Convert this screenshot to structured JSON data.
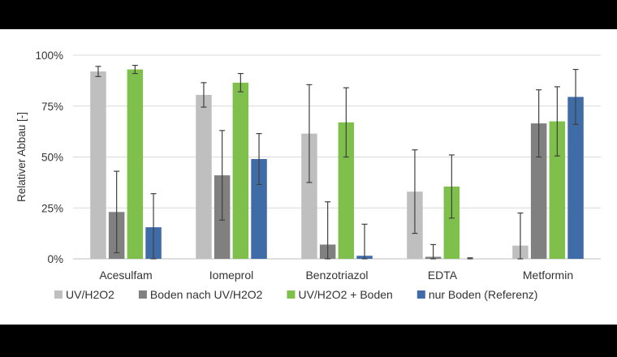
{
  "chart_data": {
    "type": "bar",
    "title": "",
    "xlabel": "",
    "ylabel": "Relativer Abbau  [-]",
    "ylim": [
      0,
      100
    ],
    "yticks": [
      0,
      25,
      50,
      75,
      100
    ],
    "ytick_labels": [
      "0%",
      "25%",
      "50%",
      "75%",
      "100%"
    ],
    "grid": true,
    "legend_position": "bottom",
    "categories": [
      "Acesulfam",
      "Iomeprol",
      "Benzotriazol",
      "EDTA",
      "Metformin"
    ],
    "series": [
      {
        "name": "UV/H2O2",
        "color": "#bfbfbf",
        "values": [
          92,
          80.5,
          61.5,
          33,
          6.5
        ],
        "errors": [
          2.5,
          6,
          24,
          20.5,
          16
        ]
      },
      {
        "name": "Boden nach UV/H2O2",
        "color": "#808080",
        "values": [
          23,
          41,
          7,
          1,
          66.5
        ],
        "errors": [
          20,
          22,
          21,
          6,
          16.5
        ]
      },
      {
        "name": "UV/H2O2 + Boden",
        "color": "#7fbf4b",
        "values": [
          93,
          86.5,
          67,
          35.5,
          67.5
        ],
        "errors": [
          2,
          4.5,
          17,
          15.5,
          17
        ]
      },
      {
        "name": "nur Boden (Referenz)",
        "color": "#3f6ba7",
        "values": [
          15.5,
          49,
          1.5,
          0,
          79.5
        ],
        "errors": [
          16.5,
          12.5,
          15.5,
          0.5,
          13.5
        ]
      }
    ]
  }
}
